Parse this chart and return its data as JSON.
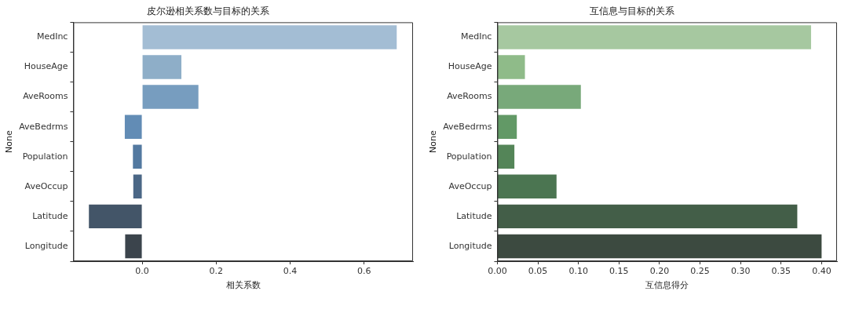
{
  "chart_data": [
    {
      "type": "bar",
      "orientation": "horizontal",
      "title": "皮尔逊相关系数与目标的关系",
      "xlabel": "相关系数",
      "ylabel": "None",
      "categories": [
        "MedInc",
        "HouseAge",
        "AveRooms",
        "AveBedrms",
        "Population",
        "AveOccup",
        "Latitude",
        "Longitude"
      ],
      "values": [
        0.688,
        0.106,
        0.152,
        -0.047,
        -0.025,
        -0.024,
        -0.144,
        -0.046
      ],
      "colors": [
        "#a3bdd4",
        "#8eaec8",
        "#779dbf",
        "#628cb5",
        "#5379a0",
        "#4b6786",
        "#435568",
        "#3b444c"
      ],
      "xlim": [
        -0.186,
        0.732
      ],
      "xticks": [
        {
          "value": 0,
          "label": "0.0"
        },
        {
          "value": 0.2,
          "label": "0.2"
        },
        {
          "value": 0.4,
          "label": "0.4"
        },
        {
          "value": 0.6,
          "label": "0.6"
        }
      ],
      "grid": false,
      "legend": false
    },
    {
      "type": "bar",
      "orientation": "horizontal",
      "title": "互信息与目标的关系",
      "xlabel": "互信息得分",
      "ylabel": "None",
      "categories": [
        "MedInc",
        "HouseAge",
        "AveRooms",
        "AveBedrms",
        "Population",
        "AveOccup",
        "Latitude",
        "Longitude"
      ],
      "values": [
        0.387,
        0.034,
        0.103,
        0.024,
        0.021,
        0.073,
        0.37,
        0.4
      ],
      "colors": [
        "#a6c8a0",
        "#8fbb89",
        "#78a97a",
        "#629966",
        "#548558",
        "#4b7551",
        "#435e48",
        "#3c4a40"
      ],
      "xlim": [
        0,
        0.419
      ],
      "xticks": [
        {
          "value": 0,
          "label": "0.00"
        },
        {
          "value": 0.05,
          "label": "0.05"
        },
        {
          "value": 0.1,
          "label": "0.10"
        },
        {
          "value": 0.15,
          "label": "0.15"
        },
        {
          "value": 0.2,
          "label": "0.20"
        },
        {
          "value": 0.25,
          "label": "0.25"
        },
        {
          "value": 0.3,
          "label": "0.30"
        },
        {
          "value": 0.35,
          "label": "0.35"
        },
        {
          "value": 0.4,
          "label": "0.40"
        }
      ],
      "grid": false,
      "legend": false
    }
  ]
}
